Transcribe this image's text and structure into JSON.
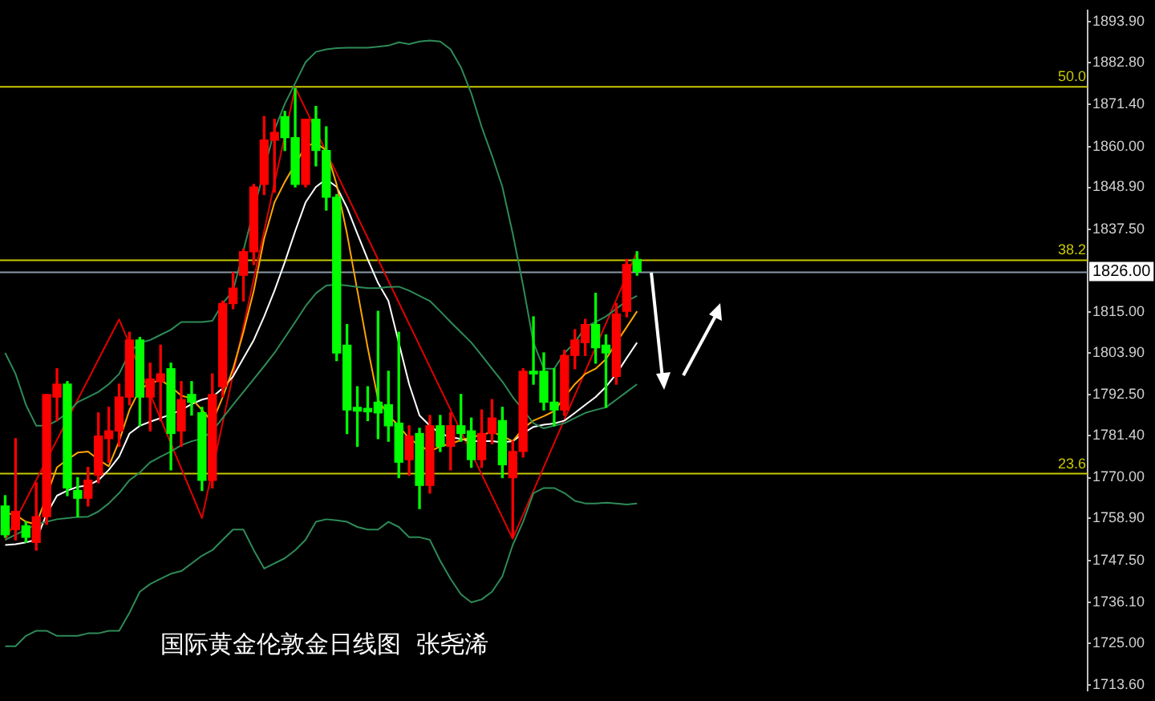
{
  "chart_data": {
    "type": "candlestick",
    "categories": [
      null,
      null,
      null,
      null,
      null,
      null,
      null,
      null,
      null,
      null,
      null,
      null,
      null,
      null,
      null,
      null,
      null,
      null,
      null,
      null,
      null,
      null,
      null,
      null,
      null,
      null,
      null,
      null,
      null,
      null,
      null,
      null,
      null,
      null,
      null,
      null,
      null,
      null,
      null,
      null,
      null,
      null,
      null,
      null,
      null,
      null,
      null,
      null,
      null,
      null,
      null,
      null,
      null,
      null,
      null,
      null,
      null,
      null,
      null,
      null,
      null,
      null,
      null,
      null,
      null,
      null,
      null,
      null,
      null,
      null,
      null,
      null,
      null,
      null,
      null,
      null,
      null,
      null,
      null,
      null,
      null,
      null,
      null,
      null,
      null,
      null,
      null,
      null,
      null,
      null,
      null,
      null,
      null,
      null,
      null,
      null,
      null,
      null,
      null,
      null,
      null,
      null,
      null,
      null,
      null
    ],
    "ohlc": [
      [
        1762.3,
        1765.1,
        1753.8,
        1754.5
      ],
      [
        1755.9,
        1780.6,
        1753.1,
        1760.8
      ],
      [
        1756.9,
        1758.0,
        1752.4,
        1753.8
      ],
      [
        1752.4,
        1768.6,
        1750.3,
        1759.4
      ],
      [
        1759.4,
        1792.6,
        1757.3,
        1792.6
      ],
      [
        1791.9,
        1799.6,
        1785.5,
        1795.4
      ],
      [
        1795.4,
        1796.1,
        1765.1,
        1767.2
      ],
      [
        1766.5,
        1770.0,
        1759.4,
        1764.4
      ],
      [
        1764.4,
        1772.8,
        1762.3,
        1769.3
      ],
      [
        1770.7,
        1787.6,
        1768.6,
        1781.3
      ],
      [
        1780.6,
        1789.1,
        1774.2,
        1782.7
      ],
      [
        1782.7,
        1795.4,
        1778.5,
        1791.9
      ],
      [
        1791.9,
        1809.5,
        1789.8,
        1807.4
      ],
      [
        1807.4,
        1808.1,
        1784.1,
        1791.9
      ],
      [
        1791.9,
        1801.1,
        1782.7,
        1796.8
      ],
      [
        1796.1,
        1806.0,
        1785.5,
        1798.2
      ],
      [
        1799.6,
        1801.1,
        1772.1,
        1782.0
      ],
      [
        1782.7,
        1796.1,
        1778.5,
        1791.2
      ],
      [
        1792.6,
        1796.1,
        1787.0,
        1790.5
      ],
      [
        1787.6,
        1789.1,
        1766.5,
        1769.3
      ],
      [
        1769.3,
        1798.2,
        1767.2,
        1792.6
      ],
      [
        1794.7,
        1818.0,
        1791.9,
        1817.3
      ],
      [
        1817.3,
        1825.7,
        1815.9,
        1821.5
      ],
      [
        1825.0,
        1832.1,
        1818.0,
        1831.4
      ],
      [
        1831.4,
        1849.7,
        1827.9,
        1849.0
      ],
      [
        1849.7,
        1868.1,
        1846.9,
        1861.7
      ],
      [
        1861.7,
        1867.4,
        1847.6,
        1863.8
      ],
      [
        1868.1,
        1869.5,
        1858.9,
        1862.4
      ],
      [
        1862.4,
        1875.8,
        1849.0,
        1849.7
      ],
      [
        1849.7,
        1867.4,
        1849.0,
        1867.4
      ],
      [
        1867.4,
        1870.9,
        1854.7,
        1858.9
      ],
      [
        1858.9,
        1865.3,
        1842.7,
        1846.2
      ],
      [
        1846.2,
        1846.9,
        1801.8,
        1803.9
      ],
      [
        1806.0,
        1811.6,
        1782.0,
        1788.4
      ],
      [
        1789.1,
        1794.7,
        1778.5,
        1788.1
      ],
      [
        1788.8,
        1794.7,
        1785.5,
        1787.9
      ],
      [
        1790.5,
        1815.2,
        1780.6,
        1787.6
      ],
      [
        1789.8,
        1798.9,
        1779.9,
        1784.1
      ],
      [
        1784.8,
        1809.5,
        1770.0,
        1774.2
      ],
      [
        1774.9,
        1784.1,
        1770.7,
        1781.3
      ],
      [
        1782.0,
        1783.4,
        1761.6,
        1767.9
      ],
      [
        1767.9,
        1786.9,
        1765.8,
        1784.1
      ],
      [
        1784.1,
        1786.9,
        1777.1,
        1778.5
      ],
      [
        1778.5,
        1787.6,
        1772.1,
        1784.1
      ],
      [
        1784.1,
        1792.6,
        1779.9,
        1782.0
      ],
      [
        1782.7,
        1786.2,
        1772.8,
        1774.9
      ],
      [
        1774.9,
        1788.4,
        1772.8,
        1782.0
      ],
      [
        1782.0,
        1791.2,
        1779.2,
        1786.2
      ],
      [
        1785.5,
        1789.1,
        1770.0,
        1773.5
      ],
      [
        1770.0,
        1779.9,
        1753.8,
        1777.1
      ],
      [
        1777.1,
        1799.6,
        1775.6,
        1798.9
      ],
      [
        1798.9,
        1813.7,
        1795.4,
        1798.2
      ],
      [
        1798.9,
        1803.9,
        1788.4,
        1790.5
      ],
      [
        1790.5,
        1799.6,
        1784.1,
        1788.4
      ],
      [
        1788.4,
        1804.6,
        1786.9,
        1803.2
      ],
      [
        1803.2,
        1810.2,
        1799.6,
        1807.4
      ],
      [
        1806.7,
        1813.0,
        1803.2,
        1811.6
      ],
      [
        1811.6,
        1820.1,
        1801.1,
        1805.3
      ],
      [
        1806.0,
        1808.8,
        1789.1,
        1803.9
      ],
      [
        1797.5,
        1817.3,
        1795.4,
        1814.5
      ],
      [
        1815.2,
        1829.3,
        1813.7,
        1827.9
      ],
      [
        1829.3,
        1831.4,
        1825.0,
        1826.0
      ],
      null,
      null,
      null,
      null,
      null,
      null,
      null,
      null,
      null,
      null,
      null,
      null,
      null,
      null,
      null,
      null,
      null,
      null,
      null,
      null,
      null,
      null,
      null,
      null,
      null,
      null,
      null,
      null,
      null,
      null,
      null,
      null,
      null,
      null,
      null,
      null,
      null,
      null,
      null,
      null,
      null,
      null,
      null
    ],
    "colors": [
      "#00ff00",
      "#ff0000",
      "#00ff00",
      "#ff0000",
      "#ff0000",
      "#ff0000",
      "#00ff00",
      "#00ff00",
      "#ff0000",
      "#ff0000",
      "#ff0000",
      "#ff0000",
      "#ff0000",
      "#00ff00",
      "#ff0000",
      "#ff0000",
      "#00ff00",
      "#ff0000",
      "#00ff00",
      "#00ff00",
      "#ff0000",
      "#ff0000",
      "#ff0000",
      "#ff0000",
      "#ff0000",
      "#ff0000",
      "#ff0000",
      "#00ff00",
      "#00ff00",
      "#ff0000",
      "#00ff00",
      "#00ff00",
      "#00ff00",
      "#00ff00",
      "#00ff00",
      "#00ff00",
      "#00ff00",
      "#00ff00",
      "#00ff00",
      "#ff0000",
      "#00ff00",
      "#ff0000",
      "#00ff00",
      "#ff0000",
      "#00ff00",
      "#00ff00",
      "#ff0000",
      "#ff0000",
      "#00ff00",
      "#ff0000",
      "#ff0000",
      "#00ff00",
      "#00ff00",
      "#00ff00",
      "#ff0000",
      "#ff0000",
      "#ff0000",
      "#00ff00",
      "#00ff00",
      "#ff0000",
      "#ff0000",
      "#00ff00",
      null,
      null,
      null,
      null,
      null,
      null,
      null,
      null,
      null,
      null,
      null,
      null,
      null,
      null,
      null,
      null,
      null,
      null,
      null,
      null,
      null,
      null,
      null,
      null,
      null,
      null,
      null,
      null,
      null,
      null,
      null,
      null,
      null,
      null,
      null,
      null,
      null,
      null,
      null,
      null,
      null,
      null,
      null
    ],
    "series": [
      {
        "type": "line",
        "color": "#2e8b57",
        "values": [
          1803.9,
          1798.2,
          1789.8,
          1784.1,
          1784.1,
          1785.5,
          1787.6,
          1790.5,
          1791.9,
          1793.3,
          1795.4,
          1798.2,
          1803.9,
          1806.7,
          1807.4,
          1808.8,
          1810.2,
          1812.3,
          1812.3,
          1812.3,
          1812.6,
          1817.3,
          1820.8,
          null,
          null,
          null,
          1864.5,
          1871.6,
          1877.2,
          1882.9,
          1885.7,
          1886.4,
          1886.7,
          1886.8,
          1886.8,
          1886.8,
          1887.1,
          1887.4,
          1888.3,
          1887.8,
          1888.5,
          1888.8,
          1888.5,
          1886.4,
          1881.5,
          1874.4,
          1865.3,
          1857.5,
          1849.0,
          1836.3,
          1822.2,
          1806.7,
          1799.6,
          1799.6,
          1803.9,
          1806.7,
          1810.9,
          1812.3,
          1813.8,
          1815.9,
          1818.0,
          1819.4,
          null,
          null,
          null,
          null,
          null,
          null,
          null,
          null,
          null,
          null,
          null,
          null,
          null,
          null,
          null,
          null,
          null,
          null,
          null,
          null,
          null,
          null,
          null,
          null,
          null,
          null,
          null,
          null,
          null,
          null,
          null,
          null,
          null,
          null,
          null,
          null,
          null,
          null,
          null,
          null,
          null,
          null,
          null
        ]
      },
      {
        "type": "line",
        "color": "#2e8b57",
        "values": [
          1753.1,
          1754.5,
          1755.9,
          1757.3,
          1758.0,
          1758.7,
          1759.0,
          1759.3,
          1759.4,
          1760.8,
          1763.0,
          1765.8,
          1769.3,
          1771.4,
          1774.2,
          1775.7,
          1777.1,
          1778.8,
          1779.9,
          1780.6,
          1782.7,
          1786.2,
          1789.8,
          1793.3,
          1796.8,
          1800.3,
          1803.9,
          1808.1,
          1812.3,
          1816.6,
          1820.1,
          1822.2,
          1822.5,
          1822.2,
          1821.8,
          1821.5,
          1821.5,
          1821.8,
          1821.9,
          1820.8,
          1819.4,
          1818.0,
          1815.2,
          1812.3,
          1809.5,
          1806.7,
          1803.2,
          1799.6,
          1796.1,
          1791.9,
          1788.4,
          1784.8,
          1783.4,
          1784.1,
          1784.8,
          1786.2,
          1787.6,
          1788.4,
          1789.1,
          1791.2,
          1793.3,
          1795.4,
          null,
          null,
          null,
          null,
          null,
          null,
          null,
          null,
          null,
          null,
          null,
          null,
          null,
          null,
          null,
          null,
          null,
          null,
          null,
          null,
          null,
          null,
          null,
          null,
          null,
          null,
          null,
          null,
          null,
          null,
          null,
          null,
          null,
          null,
          null,
          null,
          null,
          null,
          null,
          null,
          null,
          null,
          null
        ]
      },
      {
        "type": "line",
        "color": "#2e8b57",
        "values": [
          1724.2,
          1724.2,
          1727.0,
          1728.4,
          1728.4,
          1727.0,
          1727.0,
          1727.0,
          1727.7,
          1727.7,
          1728.4,
          1728.4,
          1733.3,
          1739.0,
          1741.1,
          1742.5,
          1743.9,
          1744.6,
          1746.7,
          1748.8,
          1750.3,
          1753.1,
          1755.9,
          1755.9,
          1750.3,
          1745.3,
          1746.7,
          1748.1,
          1750.3,
          1753.1,
          1758.0,
          1758.7,
          1758.4,
          1758.0,
          1756.6,
          1755.9,
          1755.9,
          1758.0,
          1756.6,
          1753.8,
          1753.8,
          1753.1,
          1747.4,
          1742.5,
          1738.3,
          1736.1,
          1736.9,
          1739.0,
          1743.2,
          1751.7,
          1758.0,
          1765.8,
          1767.2,
          1767.2,
          1765.8,
          1763.7,
          1763.0,
          1763.0,
          1763.2,
          1763.0,
          1762.7,
          1763.0,
          null,
          null,
          null,
          null,
          null,
          null,
          null,
          null,
          null,
          null,
          null,
          null,
          null,
          null,
          null,
          null,
          null,
          null,
          null,
          null,
          null,
          null,
          null,
          null,
          null,
          null,
          null,
          null,
          null,
          null,
          null,
          null,
          null,
          null,
          null,
          null,
          null,
          null,
          null,
          null,
          null,
          null,
          null
        ]
      },
      {
        "type": "line",
        "color": "#ffa500",
        "values": [
          1760.4,
          1759.9,
          1758.0,
          1757.3,
          null,
          1772.8,
          1774.9,
          1776.8,
          1777.1,
          1774.9,
          1773.1,
          1779.9,
          1788.4,
          1794.0,
          1795.7,
          1796.5,
          1794.7,
          1792.3,
          1791.5,
          1788.4,
          1785.1,
          1791.9,
          1799.6,
          1809.5,
          1820.8,
          1834.9,
          1844.8,
          1850.4,
          null,
          1860.0,
          1861.0,
          1858.9,
          1849.7,
          1836.3,
          1820.8,
          1805.3,
          1791.2,
          1786.9,
          1784.1,
          1780.6,
          1778.8,
          1777.1,
          1778.5,
          1779.2,
          1780.2,
          1781.0,
          1781.6,
          1782.4,
          1781.3,
          1779.9,
          1783.4,
          1785.5,
          1786.7,
          1788.1,
          1791.9,
          1795.4,
          1798.2,
          1799.6,
          1802.2,
          1806.7,
          1810.9,
          1815.2,
          null,
          null,
          null,
          null,
          null,
          null,
          null,
          null,
          null,
          null,
          null,
          null,
          null,
          null,
          null,
          null,
          null,
          null,
          null,
          null,
          null,
          null,
          null,
          null,
          null,
          null,
          null,
          null,
          null,
          null,
          null,
          null,
          null,
          null,
          null,
          null,
          null,
          null,
          null,
          null,
          null,
          null,
          null
        ]
      },
      {
        "type": "line",
        "color": "#ffffff",
        "values": [
          1751.7,
          1751.9,
          1752.4,
          1753.1,
          1760.1,
          1765.1,
          1766.5,
          1767.5,
          1767.9,
          1769.3,
          1772.1,
          1775.7,
          1782.0,
          1784.1,
          1785.2,
          1786.2,
          1787.2,
          1788.4,
          1790.0,
          1791.2,
          1791.9,
          1794.3,
          1797.5,
          1802.5,
          1807.4,
          1813.8,
          1820.8,
          1828.6,
          1837.0,
          1844.8,
          1849.0,
          1851.1,
          1849.0,
          1843.4,
          1836.3,
          1829.3,
          1822.9,
          1818.0,
          1806.7,
          1795.4,
          1786.9,
          1784.1,
          1782.0,
          1781.0,
          1780.5,
          1779.9,
          1779.9,
          1779.9,
          1779.6,
          1779.9,
          1782.0,
          1783.8,
          1784.4,
          1784.7,
          1785.5,
          1787.6,
          1789.8,
          1791.9,
          1794.7,
          1798.2,
          1802.5,
          1806.7,
          null,
          null,
          null,
          null,
          null,
          null,
          null,
          null,
          null,
          null,
          null,
          null,
          null,
          null,
          null,
          null,
          null,
          null,
          null,
          null,
          null,
          null,
          null,
          null,
          null,
          null,
          null,
          null,
          null,
          null,
          null,
          null,
          null,
          null,
          null,
          null,
          null,
          null,
          null,
          null,
          null,
          null,
          null
        ]
      },
      {
        "type": "line",
        "color": "#e00000",
        "values": [
          1753.0,
          null,
          null,
          null,
          null,
          null,
          null,
          null,
          null,
          null,
          null,
          1813.0,
          null,
          null,
          null,
          null,
          null,
          null,
          null,
          1759.0,
          null,
          null,
          null,
          null,
          null,
          null,
          null,
          null,
          1876.0,
          null,
          null,
          null,
          null,
          null,
          null,
          null,
          null,
          null,
          null,
          null,
          null,
          null,
          null,
          null,
          null,
          null,
          null,
          null,
          null,
          1753.4,
          null,
          null,
          null,
          null,
          null,
          null,
          null,
          null,
          null,
          null,
          null,
          1831.4,
          null,
          null,
          null,
          null,
          null,
          null,
          null,
          null,
          null,
          null,
          null,
          null,
          null,
          null,
          null,
          null,
          null,
          null,
          null,
          null,
          null,
          null,
          null,
          null,
          null,
          null,
          null,
          null,
          null,
          null,
          null,
          null,
          null,
          null,
          null,
          null,
          null,
          null,
          null,
          null,
          null,
          null,
          null
        ]
      }
    ],
    "ylim": [
      1712.1,
      1897.0
    ],
    "yticks": [
      {
        "value": 1893.9,
        "label": "1893.90"
      },
      {
        "value": 1882.8,
        "label": "1882.80"
      },
      {
        "value": 1871.4,
        "label": "1871.40"
      },
      {
        "value": 1860,
        "label": "1860.00"
      },
      {
        "value": 1848.9,
        "label": "1848.90"
      },
      {
        "value": 1837.5,
        "label": "1837.50"
      },
      {
        "value": 1815,
        "label": "1815.00"
      },
      {
        "value": 1803.9,
        "label": "1803.90"
      },
      {
        "value": 1792.5,
        "label": "1792.50"
      },
      {
        "value": 1781.4,
        "label": "1781.40"
      },
      {
        "value": 1770,
        "label": "1770.00"
      },
      {
        "value": 1758.9,
        "label": "1758.90"
      },
      {
        "value": 1747.5,
        "label": "1747.50"
      },
      {
        "value": 1736.1,
        "label": "1736.10"
      },
      {
        "value": 1725,
        "label": "1725.00"
      },
      {
        "value": 1713.6,
        "label": "1713.60"
      }
    ],
    "ref_lines": [
      {
        "axis": "y",
        "value": 1876.4,
        "color": "#c8c800"
      },
      {
        "axis": "y",
        "value": 1829.3,
        "color": "#c8c800"
      },
      {
        "axis": "y",
        "value": 1771.3,
        "color": "#c8c800"
      },
      {
        "axis": "y",
        "value": 1826.0,
        "label": "1826.00",
        "color": "#8a9aa8"
      }
    ],
    "annotations": [
      "国际黄金伦敦金日线图  张尧浠",
      {
        "text": "50.0",
        "y": 1876.4
      },
      {
        "text": "38.2",
        "y": 1829.3
      },
      {
        "text": "23.6",
        "y": 1771.3
      }
    ],
    "tick_labels": "y",
    "grid": false,
    "legend": false,
    "marker": "none",
    "line_style": "solid"
  }
}
